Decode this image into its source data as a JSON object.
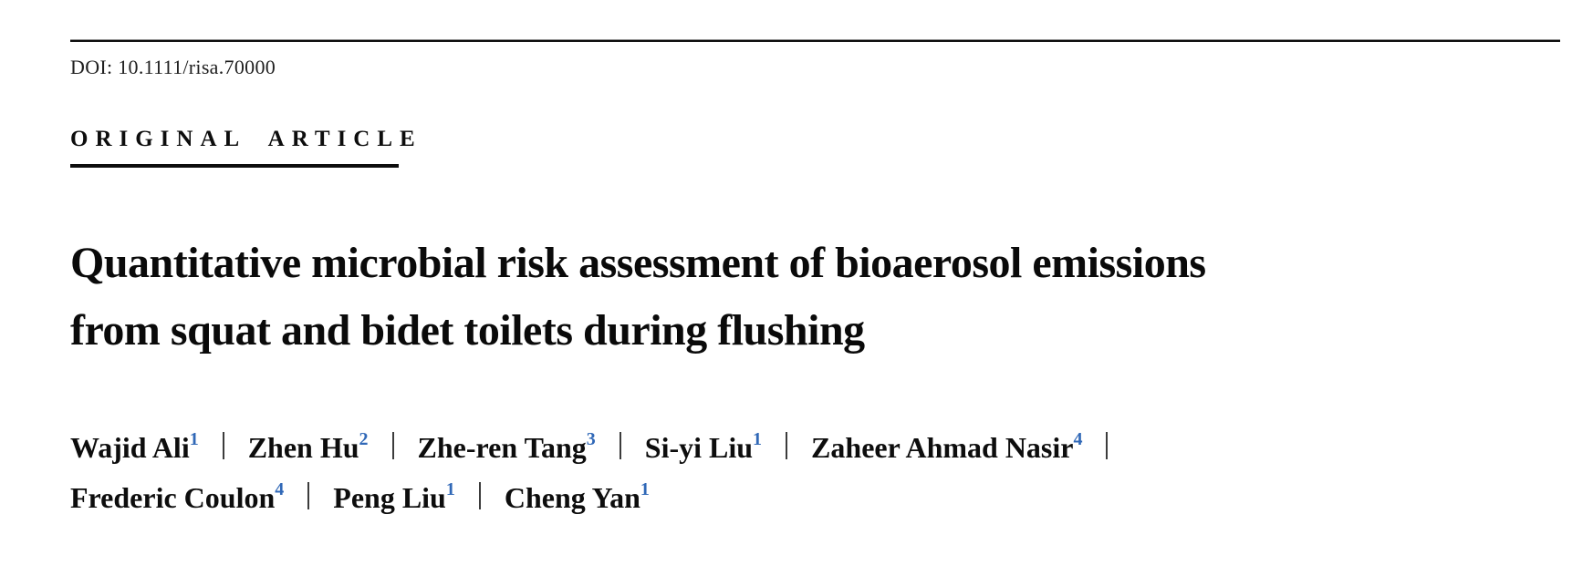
{
  "document": {
    "doi": "DOI: 10.1111/risa.70000",
    "article_type": "ORIGINAL ARTICLE",
    "title_line1": "Quantitative microbial risk assessment of bioaerosol emissions",
    "title_line2": "from squat and bidet toilets during flushing"
  },
  "authors": {
    "rows": [
      [
        {
          "name": "Wajid Ali",
          "sup": "1"
        },
        {
          "name": "Zhen Hu",
          "sup": "2"
        },
        {
          "name": "Zhe-ren Tang",
          "sup": "3"
        },
        {
          "name": "Si-yi Liu",
          "sup": "1"
        },
        {
          "name": "Zaheer Ahmad Nasir",
          "sup": "4"
        }
      ],
      [
        {
          "name": "Frederic Coulon",
          "sup": "4"
        },
        {
          "name": "Peng Liu",
          "sup": "1"
        },
        {
          "name": "Cheng Yan",
          "sup": "1"
        }
      ]
    ]
  },
  "colors": {
    "affiliation_superscript": "#3068b7",
    "text": "#111111",
    "rule": "#0c0c0c"
  }
}
